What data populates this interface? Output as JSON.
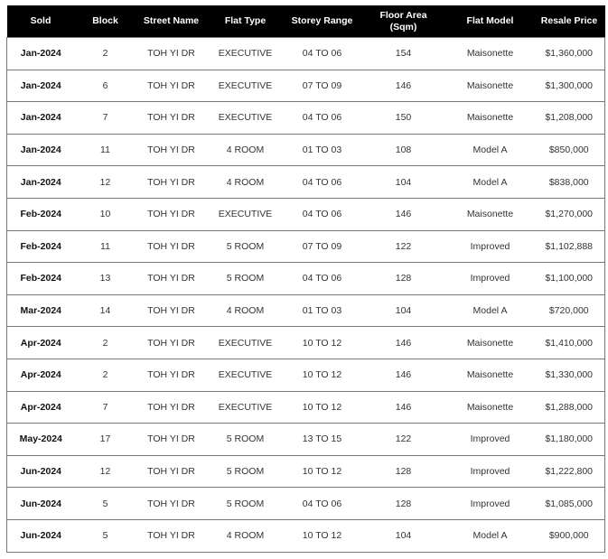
{
  "table": {
    "headers": [
      "Sold",
      "Block",
      "Street Name",
      "Flat Type",
      "Storey Range",
      "Floor Area\n(Sqm)",
      "Flat Model",
      "Resale Price"
    ],
    "rows": [
      [
        "Jan-2024",
        "2",
        "TOH YI DR",
        "EXECUTIVE",
        "04 TO 06",
        "154",
        "Maisonette",
        "$1,360,000"
      ],
      [
        "Jan-2024",
        "6",
        "TOH YI DR",
        "EXECUTIVE",
        "07 TO 09",
        "146",
        "Maisonette",
        "$1,300,000"
      ],
      [
        "Jan-2024",
        "7",
        "TOH YI DR",
        "EXECUTIVE",
        "04 TO 06",
        "150",
        "Maisonette",
        "$1,208,000"
      ],
      [
        "Jan-2024",
        "11",
        "TOH YI DR",
        "4 ROOM",
        "01 TO 03",
        "108",
        "Model A",
        "$850,000"
      ],
      [
        "Jan-2024",
        "12",
        "TOH YI DR",
        "4 ROOM",
        "04 TO 06",
        "104",
        "Model A",
        "$838,000"
      ],
      [
        "Feb-2024",
        "10",
        "TOH YI DR",
        "EXECUTIVE",
        "04 TO 06",
        "146",
        "Maisonette",
        "$1,270,000"
      ],
      [
        "Feb-2024",
        "11",
        "TOH YI DR",
        "5 ROOM",
        "07 TO 09",
        "122",
        "Improved",
        "$1,102,888"
      ],
      [
        "Feb-2024",
        "13",
        "TOH YI DR",
        "5 ROOM",
        "04 TO 06",
        "128",
        "Improved",
        "$1,100,000"
      ],
      [
        "Mar-2024",
        "14",
        "TOH YI DR",
        "4 ROOM",
        "01 TO 03",
        "104",
        "Model A",
        "$720,000"
      ],
      [
        "Apr-2024",
        "2",
        "TOH YI DR",
        "EXECUTIVE",
        "10 TO 12",
        "146",
        "Maisonette",
        "$1,410,000"
      ],
      [
        "Apr-2024",
        "2",
        "TOH YI DR",
        "EXECUTIVE",
        "10 TO 12",
        "146",
        "Maisonette",
        "$1,330,000"
      ],
      [
        "Apr-2024",
        "7",
        "TOH YI DR",
        "EXECUTIVE",
        "10 TO 12",
        "146",
        "Maisonette",
        "$1,288,000"
      ],
      [
        "May-2024",
        "17",
        "TOH YI DR",
        "5 ROOM",
        "13 TO 15",
        "122",
        "Improved",
        "$1,180,000"
      ],
      [
        "Jun-2024",
        "12",
        "TOH YI DR",
        "5 ROOM",
        "10 TO 12",
        "128",
        "Improved",
        "$1,222,800"
      ],
      [
        "Jun-2024",
        "5",
        "TOH YI DR",
        "5 ROOM",
        "04 TO 06",
        "128",
        "Improved",
        "$1,085,000"
      ],
      [
        "Jun-2024",
        "5",
        "TOH YI DR",
        "4 ROOM",
        "10 TO 12",
        "104",
        "Model A",
        "$900,000"
      ]
    ]
  },
  "colors": {
    "header_bg": "#000000",
    "header_text": "#ffffff",
    "border": "#777777"
  }
}
